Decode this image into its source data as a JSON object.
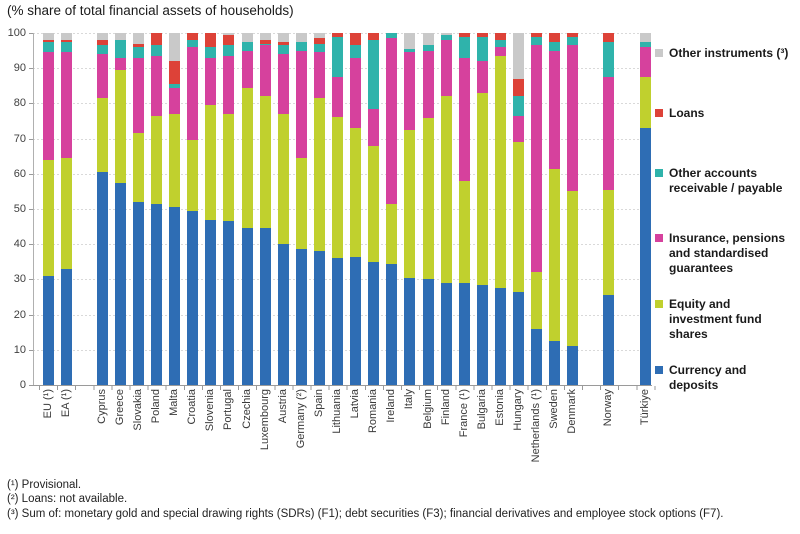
{
  "title": "(% share of total financial assets of households)",
  "footnotes": [
    "(¹) Provisional.",
    "(²) Loans: not available.",
    "(³) Sum of: monetary gold and special drawing rights (SDRs) (F1); debt securities (F3); financial derivatives and employee stock options (F7)."
  ],
  "chart_data": {
    "type": "bar",
    "stacked": true,
    "title": "(% share of total financial assets of households)",
    "xlabel": "",
    "ylabel": "% share of total financial assets of households",
    "ylim": [
      0,
      100
    ],
    "ytick_step": 10,
    "grid": "horizontal-dotted",
    "legend_position": "right",
    "series_order_bottom_to_top": [
      "currency_deposits",
      "equity_funds",
      "insurance_pensions",
      "other_accounts",
      "loans",
      "other_instruments"
    ],
    "series": [
      {
        "id": "other_instruments",
        "label": "Other instruments (³)",
        "color": "#c9c9c9"
      },
      {
        "id": "loans",
        "label": "Loans",
        "color": "#dd4238"
      },
      {
        "id": "other_accounts",
        "label": "Other accounts receivable / payable",
        "color": "#2fb3ab"
      },
      {
        "id": "insurance_pensions",
        "label": "Insurance, pensions and standardised guarantees",
        "color": "#d6419d"
      },
      {
        "id": "equity_funds",
        "label": "Equity and investment fund shares",
        "color": "#c0d02e"
      },
      {
        "id": "currency_deposits",
        "label": "Currency and deposits",
        "color": "#2e6db4"
      }
    ],
    "categories": [
      {
        "name": "EU (¹)",
        "values": {
          "currency_deposits": 31,
          "equity_funds": 33,
          "insurance_pensions": 30.5,
          "other_accounts": 3,
          "loans": 0.5,
          "other_instruments": 2
        }
      },
      {
        "name": "EA (¹)",
        "values": {
          "currency_deposits": 33,
          "equity_funds": 31.5,
          "insurance_pensions": 30,
          "other_accounts": 3,
          "loans": 0.5,
          "other_instruments": 2
        },
        "gap_after": true
      },
      {
        "name": "Cyprus",
        "values": {
          "currency_deposits": 60.5,
          "equity_funds": 21,
          "insurance_pensions": 12.5,
          "other_accounts": 2.5,
          "loans": 1.5,
          "other_instruments": 2
        }
      },
      {
        "name": "Greece",
        "values": {
          "currency_deposits": 57.5,
          "equity_funds": 32,
          "insurance_pensions": 3.5,
          "other_accounts": 5,
          "loans": 0,
          "other_instruments": 2
        }
      },
      {
        "name": "Slovakia",
        "values": {
          "currency_deposits": 52,
          "equity_funds": 19.5,
          "insurance_pensions": 21.5,
          "other_accounts": 3,
          "loans": 1,
          "other_instruments": 3
        }
      },
      {
        "name": "Poland",
        "values": {
          "currency_deposits": 51.5,
          "equity_funds": 25,
          "insurance_pensions": 17,
          "other_accounts": 3,
          "loans": 3.5,
          "other_instruments": 0
        }
      },
      {
        "name": "Malta",
        "values": {
          "currency_deposits": 50.5,
          "equity_funds": 26.5,
          "insurance_pensions": 7.5,
          "other_accounts": 1,
          "loans": 6.5,
          "other_instruments": 8
        }
      },
      {
        "name": "Croatia",
        "values": {
          "currency_deposits": 49.5,
          "equity_funds": 20,
          "insurance_pensions": 26.5,
          "other_accounts": 2,
          "loans": 2,
          "other_instruments": 0
        }
      },
      {
        "name": "Slovenia",
        "values": {
          "currency_deposits": 47,
          "equity_funds": 32.5,
          "insurance_pensions": 13.5,
          "other_accounts": 3,
          "loans": 4,
          "other_instruments": 0
        }
      },
      {
        "name": "Portugal",
        "values": {
          "currency_deposits": 46.5,
          "equity_funds": 30.5,
          "insurance_pensions": 16.5,
          "other_accounts": 3,
          "loans": 3,
          "other_instruments": 0.5
        }
      },
      {
        "name": "Czechia",
        "values": {
          "currency_deposits": 44.5,
          "equity_funds": 40,
          "insurance_pensions": 10.5,
          "other_accounts": 2.5,
          "loans": 0,
          "other_instruments": 2.5
        }
      },
      {
        "name": "Luxembourg",
        "values": {
          "currency_deposits": 44.5,
          "equity_funds": 37.5,
          "insurance_pensions": 14.5,
          "other_accounts": 0.5,
          "loans": 1,
          "other_instruments": 2
        }
      },
      {
        "name": "Austria",
        "values": {
          "currency_deposits": 40,
          "equity_funds": 37,
          "insurance_pensions": 17,
          "other_accounts": 2.5,
          "loans": 1,
          "other_instruments": 2.5
        }
      },
      {
        "name": "Germany (²)",
        "values": {
          "currency_deposits": 38.5,
          "equity_funds": 26,
          "insurance_pensions": 30.5,
          "other_accounts": 2.5,
          "loans": 0,
          "other_instruments": 2.5
        }
      },
      {
        "name": "Spain",
        "values": {
          "currency_deposits": 38,
          "equity_funds": 43.5,
          "insurance_pensions": 13,
          "other_accounts": 2.5,
          "loans": 1.5,
          "other_instruments": 1.5
        }
      },
      {
        "name": "Lithuania",
        "values": {
          "currency_deposits": 36,
          "equity_funds": 40,
          "insurance_pensions": 11.5,
          "other_accounts": 11.5,
          "loans": 1,
          "other_instruments": 0
        }
      },
      {
        "name": "Latvia",
        "values": {
          "currency_deposits": 36.5,
          "equity_funds": 36.5,
          "insurance_pensions": 20,
          "other_accounts": 3.5,
          "loans": 3.5,
          "other_instruments": 0
        }
      },
      {
        "name": "Romania",
        "values": {
          "currency_deposits": 35,
          "equity_funds": 33,
          "insurance_pensions": 10.5,
          "other_accounts": 19.5,
          "loans": 2,
          "other_instruments": 0
        }
      },
      {
        "name": "Ireland",
        "values": {
          "currency_deposits": 34.5,
          "equity_funds": 17,
          "insurance_pensions": 47,
          "other_accounts": 1.5,
          "loans": 0,
          "other_instruments": 0
        }
      },
      {
        "name": "Italy",
        "values": {
          "currency_deposits": 30.5,
          "equity_funds": 42,
          "insurance_pensions": 22,
          "other_accounts": 1,
          "loans": 0,
          "other_instruments": 4.5
        }
      },
      {
        "name": "Belgium",
        "values": {
          "currency_deposits": 30,
          "equity_funds": 46,
          "insurance_pensions": 19,
          "other_accounts": 1.5,
          "loans": 0,
          "other_instruments": 3.5
        }
      },
      {
        "name": "Finland",
        "values": {
          "currency_deposits": 29,
          "equity_funds": 53,
          "insurance_pensions": 16,
          "other_accounts": 1.5,
          "loans": 0,
          "other_instruments": 0.5
        }
      },
      {
        "name": "France (¹)",
        "values": {
          "currency_deposits": 29,
          "equity_funds": 29,
          "insurance_pensions": 35,
          "other_accounts": 6,
          "loans": 1,
          "other_instruments": 0
        }
      },
      {
        "name": "Bulgaria",
        "values": {
          "currency_deposits": 28.5,
          "equity_funds": 54.5,
          "insurance_pensions": 9,
          "other_accounts": 7,
          "loans": 1,
          "other_instruments": 0
        }
      },
      {
        "name": "Estonia",
        "values": {
          "currency_deposits": 27.5,
          "equity_funds": 66,
          "insurance_pensions": 2.5,
          "other_accounts": 2,
          "loans": 2,
          "other_instruments": 0
        }
      },
      {
        "name": "Hungary",
        "values": {
          "currency_deposits": 26.5,
          "equity_funds": 42.5,
          "insurance_pensions": 7.5,
          "other_accounts": 5.5,
          "loans": 5,
          "other_instruments": 13
        }
      },
      {
        "name": "Netherlands (¹)",
        "values": {
          "currency_deposits": 16,
          "equity_funds": 16,
          "insurance_pensions": 64.5,
          "other_accounts": 2.5,
          "loans": 1,
          "other_instruments": 0
        }
      },
      {
        "name": "Sweden",
        "values": {
          "currency_deposits": 12.5,
          "equity_funds": 49,
          "insurance_pensions": 33.5,
          "other_accounts": 2.5,
          "loans": 2.5,
          "other_instruments": 0
        }
      },
      {
        "name": "Denmark",
        "values": {
          "currency_deposits": 11,
          "equity_funds": 44,
          "insurance_pensions": 41.5,
          "other_accounts": 2.5,
          "loans": 1,
          "other_instruments": 0
        },
        "gap_after": true
      },
      {
        "name": "Norway",
        "values": {
          "currency_deposits": 25.5,
          "equity_funds": 30,
          "insurance_pensions": 32,
          "other_accounts": 10,
          "loans": 2.5,
          "other_instruments": 0
        },
        "gap_after": true
      },
      {
        "name": "Türkiye",
        "values": {
          "currency_deposits": 73,
          "equity_funds": 14.5,
          "insurance_pensions": 8.5,
          "other_accounts": 1.5,
          "loans": 0,
          "other_instruments": 2.5
        }
      }
    ]
  }
}
